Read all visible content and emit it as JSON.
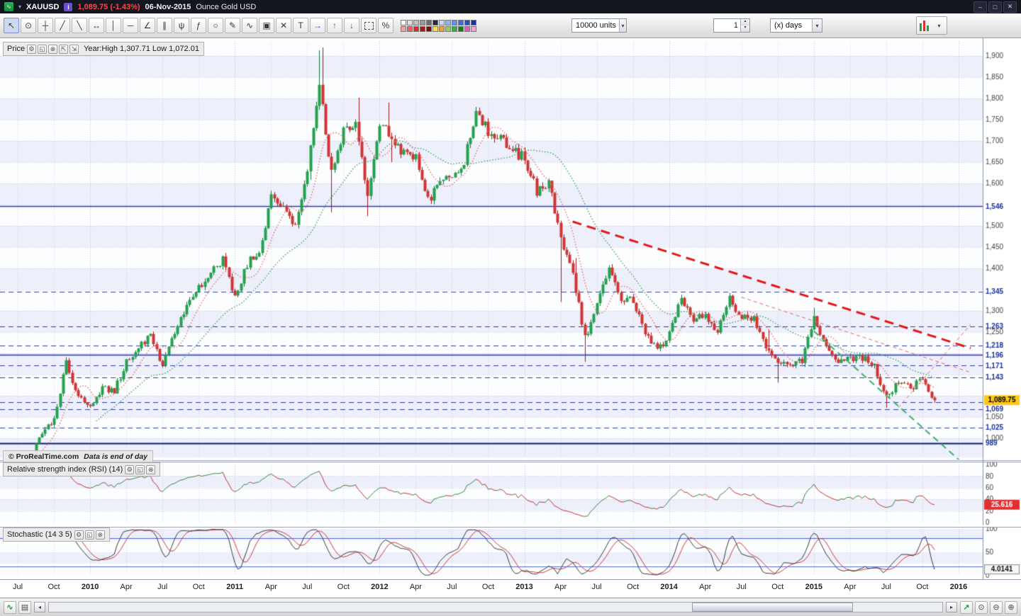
{
  "titlebar": {
    "symbol": "XAUUSD",
    "last_price": "1,089.75",
    "change_pct": "(-1.43%)",
    "date": "06-Nov-2015",
    "instrument_name": "Ounce Gold USD",
    "price_color": "#ff4545",
    "window_controls": [
      {
        "name": "minimize-button",
        "glyph": "–"
      },
      {
        "name": "restore-button",
        "glyph": "□"
      },
      {
        "name": "close-button",
        "glyph": "✕"
      }
    ]
  },
  "toolbar": {
    "tools": [
      {
        "name": "cursor-tool",
        "glyph": "↖",
        "selected": true
      },
      {
        "name": "zoom-tool",
        "glyph": "⊙"
      },
      {
        "name": "crosshair-tool",
        "glyph": "┼"
      },
      {
        "name": "segment-tool",
        "glyph": "╱"
      },
      {
        "name": "ray-tool",
        "glyph": "╲"
      },
      {
        "name": "extended-line-tool",
        "glyph": "↔"
      },
      {
        "name": "vertical-line-tool",
        "glyph": "│"
      },
      {
        "name": "horizontal-line-tool",
        "glyph": "─"
      },
      {
        "name": "angle-tool",
        "glyph": "∠"
      },
      {
        "name": "channel-tool",
        "glyph": "∥"
      },
      {
        "name": "pitchfork-tool",
        "glyph": "ψ"
      },
      {
        "name": "fibonacci-tool",
        "glyph": "ƒ"
      },
      {
        "name": "ellipse-tool",
        "glyph": "○"
      },
      {
        "name": "pencil-tool",
        "glyph": "✎"
      },
      {
        "name": "curve-tool",
        "glyph": "∿"
      },
      {
        "name": "tools-menu",
        "glyph": "▣"
      },
      {
        "name": "delete-tool",
        "glyph": "✕"
      },
      {
        "name": "text-tool",
        "glyph": "T"
      },
      {
        "name": "arrow-annotation-tool",
        "glyph": "→",
        "cls": "blue"
      },
      {
        "name": "up-arrow-marker-tool",
        "glyph": "↑",
        "cls": "green"
      },
      {
        "name": "down-arrow-marker-tool",
        "glyph": "↓",
        "cls": "red"
      },
      {
        "name": "selection-rect-tool",
        "glyph": ""
      },
      {
        "name": "percent-retracement-tool",
        "glyph": "%"
      }
    ],
    "palette_row1": [
      "#ffffff",
      "#e0e0e0",
      "#c0c0c0",
      "#9a9a9a",
      "#6e6e6e",
      "#2b2b2b",
      "#bfdcff",
      "#8ab8f8",
      "#5a94ee",
      "#3a6fd8",
      "#2a4fc0",
      "#1a33a8"
    ],
    "palette_row2": [
      "#f4a0a0",
      "#e86060",
      "#d03030",
      "#a81818",
      "#780c0c",
      "#f8e048",
      "#f0a030",
      "#90d060",
      "#40a840",
      "#187818",
      "#e858c0",
      "#f8a0d8"
    ],
    "units_dropdown": "10000 units",
    "bars_spinner_value": "1",
    "timeframe_dropdown": "(x) days"
  },
  "price_pane": {
    "title": "Price",
    "year_stats": "Year:High 1,307.71 Low 1,072.01",
    "copyright": "© ProRealTime.com",
    "data_note": "Data is end of day",
    "current_price_label": "1,089.75",
    "icons": [
      {
        "name": "settings-icon",
        "glyph": "⚙"
      },
      {
        "name": "detach-icon",
        "glyph": "◱"
      },
      {
        "name": "close-icon",
        "glyph": "⊗"
      },
      {
        "name": "maximize-pane-icon",
        "glyph": "⇱"
      },
      {
        "name": "minimize-pane-icon",
        "glyph": "⇲"
      }
    ]
  },
  "rsi_pane": {
    "title": "Relative strength index (RSI) (14)",
    "current_value": "25.616",
    "icons": [
      {
        "name": "settings-icon",
        "glyph": "⚙"
      },
      {
        "name": "detach-icon",
        "glyph": "◱"
      },
      {
        "name": "close-icon",
        "glyph": "⊗"
      }
    ]
  },
  "stoch_pane": {
    "title": "Stochastic (14 3 5)",
    "current_value": "4.0141",
    "icons": [
      {
        "name": "settings-icon",
        "glyph": "⚙"
      },
      {
        "name": "detach-icon",
        "glyph": "◱"
      },
      {
        "name": "close-icon",
        "glyph": "⊗"
      }
    ]
  },
  "bottombar": {
    "left_buttons": [
      {
        "name": "indicators-icon",
        "glyph": "∿",
        "cls": "green"
      },
      {
        "name": "compare-icon",
        "glyph": "▤",
        "cls": ""
      }
    ],
    "scroll_left_glyph": "◂",
    "scroll_right_glyph": "▸",
    "scrollbar": {
      "thumb_left_pct": 72,
      "thumb_width_pct": 18
    },
    "right_buttons": [
      {
        "name": "fit-chart-icon",
        "glyph": "↗",
        "cls": "green"
      },
      {
        "name": "zoom-selection-icon",
        "glyph": "⊙",
        "cls": ""
      },
      {
        "name": "zoom-out-icon",
        "glyph": "⊖",
        "cls": ""
      },
      {
        "name": "zoom-in-icon",
        "glyph": "⊕",
        "cls": ""
      }
    ]
  },
  "chart_data": {
    "type": "candlestick",
    "title": "XAUUSD Ounce Gold USD",
    "timeframe": "(x) days",
    "ylim": [
      955,
      1935
    ],
    "x_start_month": "2009-06",
    "x_total_months": 81,
    "monthly_close": [
      [
        "2009-06",
        927
      ],
      [
        "2009-07",
        953
      ],
      [
        "2009-08",
        955
      ],
      [
        "2009-09",
        1008
      ],
      [
        "2009-10",
        1045
      ],
      [
        "2009-11",
        1175
      ],
      [
        "2009-12",
        1095
      ],
      [
        "2010-01",
        1081
      ],
      [
        "2010-02",
        1118
      ],
      [
        "2010-03",
        1113
      ],
      [
        "2010-04",
        1180
      ],
      [
        "2010-05",
        1215
      ],
      [
        "2010-06",
        1244
      ],
      [
        "2010-07",
        1169
      ],
      [
        "2010-08",
        1248
      ],
      [
        "2010-09",
        1307
      ],
      [
        "2010-10",
        1359
      ],
      [
        "2010-11",
        1386
      ],
      [
        "2010-12",
        1421
      ],
      [
        "2011-01",
        1333
      ],
      [
        "2011-02",
        1411
      ],
      [
        "2011-03",
        1439
      ],
      [
        "2011-04",
        1563
      ],
      [
        "2011-05",
        1536
      ],
      [
        "2011-06",
        1500
      ],
      [
        "2011-07",
        1628
      ],
      [
        "2011-08",
        1826,
        1913,
        1608
      ],
      [
        "2011-09",
        1622,
        1920,
        1532
      ],
      [
        "2011-10",
        1722
      ],
      [
        "2011-11",
        1746
      ],
      [
        "2011-12",
        1566,
        1802,
        1523
      ],
      [
        "2012-01",
        1737
      ],
      [
        "2012-02",
        1711,
        1790,
        1650
      ],
      [
        "2012-03",
        1668
      ],
      [
        "2012-04",
        1664
      ],
      [
        "2012-05",
        1558
      ],
      [
        "2012-06",
        1598
      ],
      [
        "2012-07",
        1614
      ],
      [
        "2012-08",
        1654
      ],
      [
        "2012-09",
        1772
      ],
      [
        "2012-10",
        1720
      ],
      [
        "2012-11",
        1714
      ],
      [
        "2012-12",
        1675
      ],
      [
        "2013-01",
        1661
      ],
      [
        "2013-02",
        1580
      ],
      [
        "2013-03",
        1596
      ],
      [
        "2013-04",
        1476,
        1600,
        1321
      ],
      [
        "2013-05",
        1387
      ],
      [
        "2013-06",
        1234,
        1424,
        1180
      ],
      [
        "2013-07",
        1312
      ],
      [
        "2013-08",
        1394
      ],
      [
        "2013-09",
        1328
      ],
      [
        "2013-10",
        1323
      ],
      [
        "2013-11",
        1253
      ],
      [
        "2013-12",
        1205
      ],
      [
        "2014-01",
        1244
      ],
      [
        "2014-02",
        1326
      ],
      [
        "2014-03",
        1283
      ],
      [
        "2014-04",
        1291
      ],
      [
        "2014-05",
        1249
      ],
      [
        "2014-06",
        1327
      ],
      [
        "2014-07",
        1282
      ],
      [
        "2014-08",
        1287
      ],
      [
        "2014-09",
        1208
      ],
      [
        "2014-10",
        1173,
        1255,
        1131
      ],
      [
        "2014-11",
        1175
      ],
      [
        "2014-12",
        1184
      ],
      [
        "2015-01",
        1283,
        1307,
        1168
      ],
      [
        "2015-02",
        1213
      ],
      [
        "2015-03",
        1183
      ],
      [
        "2015-04",
        1184
      ],
      [
        "2015-05",
        1190
      ],
      [
        "2015-06",
        1171
      ],
      [
        "2015-07",
        1095,
        1173,
        1072
      ],
      [
        "2015-08",
        1134
      ],
      [
        "2015-09",
        1115
      ],
      [
        "2015-10",
        1142
      ],
      [
        "2015-11",
        1089.75
      ]
    ],
    "x_axis_labels": [
      {
        "m": 1,
        "label": "Jul"
      },
      {
        "m": 4,
        "label": "Oct"
      },
      {
        "m": 7,
        "label": "2010"
      },
      {
        "m": 10,
        "label": "Apr"
      },
      {
        "m": 13,
        "label": "Jul"
      },
      {
        "m": 16,
        "label": "Oct"
      },
      {
        "m": 19,
        "label": "2011"
      },
      {
        "m": 22,
        "label": "Apr"
      },
      {
        "m": 25,
        "label": "Jul"
      },
      {
        "m": 28,
        "label": "Oct"
      },
      {
        "m": 31,
        "label": "2012"
      },
      {
        "m": 34,
        "label": "Apr"
      },
      {
        "m": 37,
        "label": "Jul"
      },
      {
        "m": 40,
        "label": "Oct"
      },
      {
        "m": 43,
        "label": "2013"
      },
      {
        "m": 46,
        "label": "Apr"
      },
      {
        "m": 49,
        "label": "Jul"
      },
      {
        "m": 52,
        "label": "Oct"
      },
      {
        "m": 55,
        "label": "2014"
      },
      {
        "m": 58,
        "label": "Apr"
      },
      {
        "m": 61,
        "label": "Jul"
      },
      {
        "m": 64,
        "label": "Oct"
      },
      {
        "m": 67,
        "label": "2015"
      },
      {
        "m": 70,
        "label": "Apr"
      },
      {
        "m": 73,
        "label": "Jul"
      },
      {
        "m": 76,
        "label": "Oct"
      },
      {
        "m": 79,
        "label": "2016"
      }
    ],
    "price_ticks": [
      {
        "v": 1900,
        "label": "1,900"
      },
      {
        "v": 1850,
        "label": "1,850"
      },
      {
        "v": 1800,
        "label": "1,800"
      },
      {
        "v": 1750,
        "label": "1,750"
      },
      {
        "v": 1700,
        "label": "1,700"
      },
      {
        "v": 1650,
        "label": "1,650"
      },
      {
        "v": 1600,
        "label": "1,600"
      },
      {
        "v": 1550,
        "label": "1,550"
      },
      {
        "v": 1500,
        "label": "1,500"
      },
      {
        "v": 1450,
        "label": "1,450"
      },
      {
        "v": 1400,
        "label": "1,400"
      },
      {
        "v": 1350,
        "label": "1,350"
      },
      {
        "v": 1300,
        "label": "1,300"
      },
      {
        "v": 1250,
        "label": "1,250"
      },
      {
        "v": 1200,
        "label": "1,200"
      },
      {
        "v": 1150,
        "label": "1,150"
      },
      {
        "v": 1100,
        "label": "1,100"
      },
      {
        "v": 1050,
        "label": "1,050"
      },
      {
        "v": 1000,
        "label": "1,000"
      }
    ],
    "levels": [
      {
        "value": 1546,
        "label": "1,546",
        "style": "solid"
      },
      {
        "value": 1345,
        "label": "1,345",
        "style": "dashed"
      },
      {
        "value": 1263,
        "label": "1,263",
        "style": "dashed"
      },
      {
        "value": 1218,
        "label": "1,218",
        "style": "dashed"
      },
      {
        "value": 1196,
        "label": "1,196",
        "style": "solid"
      },
      {
        "value": 1171,
        "label": "1,171",
        "style": "dashed"
      },
      {
        "value": 1143,
        "label": "1,143",
        "style": "dashed"
      },
      {
        "value": 1085,
        "label": "1,085",
        "style": "dashed"
      },
      {
        "value": 1069,
        "label": "1,069",
        "style": "dashed"
      },
      {
        "value": 1025,
        "label": "1,025",
        "style": "dashed"
      },
      {
        "value": 989,
        "label": "989",
        "style": "baseline"
      }
    ],
    "trendlines": [
      {
        "from": [
          "2013-05",
          1510
        ],
        "to": [
          "2016-02",
          1212
        ],
        "color": "#e01818",
        "width": 3,
        "dash": [
          13,
          8
        ]
      },
      {
        "from": [
          "2015-01",
          1252
        ],
        "to": [
          "2016-02",
          925
        ],
        "color": "#3fae6e",
        "width": 2,
        "dash": [
          9,
          6
        ]
      },
      {
        "from": [
          "2014-07",
          1332
        ],
        "to": [
          "2016-02",
          1155
        ],
        "color": "#e86a6a",
        "width": 1,
        "dash": [
          5,
          4
        ]
      },
      {
        "from": [
          "2015-08",
          1072
        ],
        "to": [
          "2016-02",
          1268
        ],
        "color": "#e86a6a",
        "width": 1,
        "dash": [
          5,
          4
        ]
      }
    ],
    "moving_averages": [
      {
        "period": 30,
        "color": "#35a05a",
        "style": "dotted"
      },
      {
        "period": 9,
        "color": "#e46868",
        "style": "dotted"
      }
    ],
    "current_price": 1089.75,
    "indicators": [
      {
        "type": "line",
        "name": "RSI",
        "period": 14,
        "range": [
          0,
          100
        ],
        "current": 25.616,
        "ticks": [
          {
            "v": 100,
            "label": "100"
          },
          {
            "v": 80,
            "label": "80"
          },
          {
            "v": 60,
            "label": "60"
          },
          {
            "v": 40,
            "label": "40"
          },
          {
            "v": 20,
            "label": "20"
          },
          {
            "v": 0,
            "label": "0"
          }
        ]
      },
      {
        "type": "line",
        "name": "Stochastic",
        "k_period": 14,
        "k_smoothing": 3,
        "d_period": 5,
        "range": [
          0,
          100
        ],
        "current": 4.0141,
        "ticks": [
          {
            "v": 100,
            "label": "100"
          },
          {
            "v": 50,
            "label": "50"
          },
          {
            "v": 0,
            "label": "0"
          }
        ],
        "ref_lines": [
          80,
          20
        ]
      }
    ]
  }
}
